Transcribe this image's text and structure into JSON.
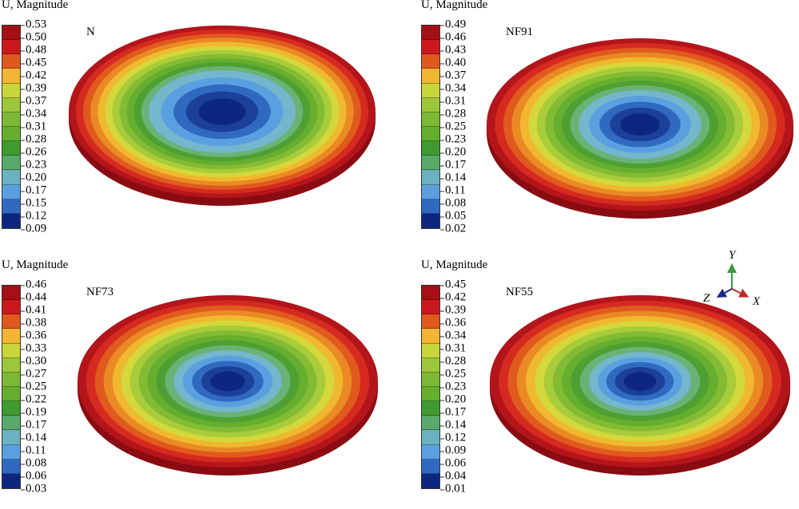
{
  "colors": [
    "#a50f15",
    "#cb181d",
    "#d94a1a",
    "#ea7a20",
    "#f2b632",
    "#c8d63a",
    "#8fc33a",
    "#66ae2e",
    "#3f9b30",
    "#5aa86a",
    "#6ab2c0",
    "#5aa0e0",
    "#2f6ac0",
    "#1c3f98",
    "#0d2780"
  ],
  "panels": [
    {
      "legend_title": "U, Magnitude",
      "label": "N",
      "ticks": [
        "0.53",
        "0.50",
        "0.48",
        "0.45",
        "0.42",
        "0.39",
        "0.37",
        "0.34",
        "0.31",
        "0.28",
        "0.26",
        "0.23",
        "0.20",
        "0.17",
        "0.15",
        "0.12",
        "0.09"
      ]
    },
    {
      "legend_title": "U, Magnitude",
      "label": "NF91",
      "ticks": [
        "0.49",
        "0.46",
        "0.43",
        "0.40",
        "0.37",
        "0.34",
        "0.31",
        "0.28",
        "0.25",
        "0.23",
        "0.20",
        "0.17",
        "0.14",
        "0.11",
        "0.08",
        "0.05",
        "0.02"
      ]
    },
    {
      "legend_title": "U, Magnitude",
      "label": "NF73",
      "ticks": [
        "0.46",
        "0.44",
        "0.41",
        "0.38",
        "0.36",
        "0.33",
        "0.30",
        "0.27",
        "0.25",
        "0.22",
        "0.19",
        "0.17",
        "0.14",
        "0.11",
        "0.08",
        "0.06",
        "0.03"
      ]
    },
    {
      "legend_title": "U, Magnitude",
      "label": "NF55",
      "ticks": [
        "0.45",
        "0.42",
        "0.39",
        "0.36",
        "0.34",
        "0.31",
        "0.28",
        "0.25",
        "0.23",
        "0.20",
        "0.17",
        "0.14",
        "0.12",
        "0.09",
        "0.06",
        "0.04",
        "0.01"
      ]
    }
  ],
  "triad": {
    "y": "Y",
    "z": "Z",
    "x": "X"
  }
}
